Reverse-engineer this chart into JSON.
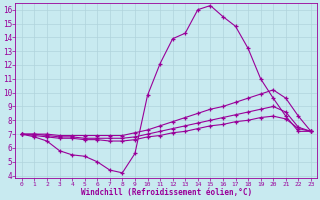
{
  "xlabel": "Windchill (Refroidissement éolien,°C)",
  "background_color": "#c8eaf0",
  "line_color": "#990099",
  "grid_color": "#b0d4dc",
  "xlim": [
    -0.5,
    23.5
  ],
  "ylim": [
    3.8,
    16.5
  ],
  "xticks": [
    0,
    1,
    2,
    3,
    4,
    5,
    6,
    7,
    8,
    9,
    10,
    11,
    12,
    13,
    14,
    15,
    16,
    17,
    18,
    19,
    20,
    21,
    22,
    23
  ],
  "yticks": [
    4,
    5,
    6,
    7,
    8,
    9,
    10,
    11,
    12,
    13,
    14,
    15,
    16
  ],
  "lines": [
    {
      "x": [
        0,
        1,
        2,
        3,
        4,
        5,
        6,
        7,
        8,
        9,
        10,
        11,
        12,
        13,
        14,
        15,
        16,
        17,
        18,
        19,
        20,
        21,
        22,
        23
      ],
      "y": [
        7.0,
        6.8,
        6.5,
        5.8,
        5.5,
        5.4,
        5.0,
        4.4,
        4.2,
        5.6,
        9.8,
        12.1,
        13.9,
        14.3,
        16.0,
        16.3,
        15.5,
        14.8,
        13.2,
        11.0,
        9.6,
        8.3,
        7.2,
        7.2
      ]
    },
    {
      "x": [
        0,
        1,
        2,
        3,
        4,
        5,
        6,
        7,
        8,
        9,
        10,
        11,
        12,
        13,
        14,
        15,
        16,
        17,
        18,
        19,
        20,
        21,
        22,
        23
      ],
      "y": [
        7.0,
        7.0,
        7.0,
        6.9,
        6.9,
        6.9,
        6.9,
        6.9,
        6.9,
        7.1,
        7.3,
        7.6,
        7.9,
        8.2,
        8.5,
        8.8,
        9.0,
        9.3,
        9.6,
        9.9,
        10.2,
        9.6,
        8.3,
        7.2
      ]
    },
    {
      "x": [
        0,
        1,
        2,
        3,
        4,
        5,
        6,
        7,
        8,
        9,
        10,
        11,
        12,
        13,
        14,
        15,
        16,
        17,
        18,
        19,
        20,
        21,
        22,
        23
      ],
      "y": [
        7.0,
        7.0,
        6.9,
        6.8,
        6.8,
        6.7,
        6.7,
        6.7,
        6.7,
        6.8,
        7.0,
        7.2,
        7.4,
        7.6,
        7.8,
        8.0,
        8.2,
        8.4,
        8.6,
        8.8,
        9.0,
        8.6,
        7.5,
        7.2
      ]
    },
    {
      "x": [
        0,
        1,
        2,
        3,
        4,
        5,
        6,
        7,
        8,
        9,
        10,
        11,
        12,
        13,
        14,
        15,
        16,
        17,
        18,
        19,
        20,
        21,
        22,
        23
      ],
      "y": [
        7.0,
        6.9,
        6.8,
        6.7,
        6.7,
        6.6,
        6.6,
        6.5,
        6.5,
        6.6,
        6.8,
        6.9,
        7.1,
        7.2,
        7.4,
        7.6,
        7.7,
        7.9,
        8.0,
        8.2,
        8.3,
        8.1,
        7.4,
        7.2
      ]
    }
  ]
}
